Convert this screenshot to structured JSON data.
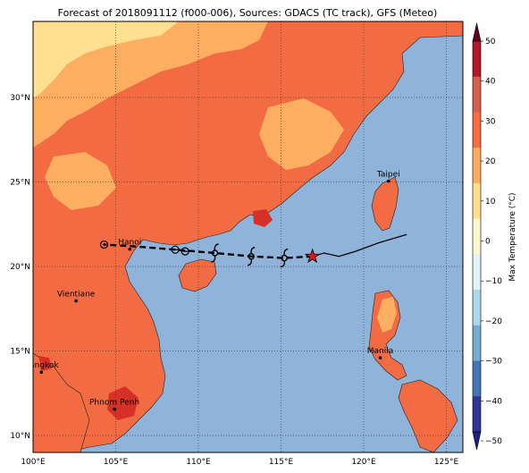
{
  "title": "Forecast of 2018091112 (f000-006), Sources: GDACS (TC track), GFS (Meteo)",
  "map": {
    "lon_range": [
      100,
      126
    ],
    "lat_range": [
      9,
      34.5
    ],
    "x_ticks": [
      {
        "value": 100,
        "label": "100°E"
      },
      {
        "value": 105,
        "label": "105°E"
      },
      {
        "value": 110,
        "label": "110°E"
      },
      {
        "value": 115,
        "label": "115°E"
      },
      {
        "value": 120,
        "label": "120°E"
      },
      {
        "value": 125,
        "label": "125°E"
      }
    ],
    "y_ticks": [
      {
        "value": 10,
        "label": "10°N"
      },
      {
        "value": 15,
        "label": "15°N"
      },
      {
        "value": 20,
        "label": "20°N"
      },
      {
        "value": 25,
        "label": "25°N"
      },
      {
        "value": 30,
        "label": "30°N"
      }
    ],
    "grid": true,
    "colors": {
      "ocean": "#8fb3d9",
      "land_warm": "#f26b43",
      "land_mild": "#fdae61",
      "land_cool": "#fee090",
      "land_hot": "#d73027",
      "track_color": "#000000",
      "star_color": "#d7191c"
    }
  },
  "cities": [
    {
      "name": "Taipei",
      "lon": 121.5,
      "lat": 25.05
    },
    {
      "name": "Hanoi",
      "lon": 105.85,
      "lat": 21.03
    },
    {
      "name": "Vientiane",
      "lon": 102.6,
      "lat": 17.97
    },
    {
      "name": "Manila",
      "lon": 121.0,
      "lat": 14.6
    },
    {
      "name": "Bangkok",
      "lon": 100.5,
      "lat": 13.75
    },
    {
      "name": "Phnom Penh",
      "lon": 104.92,
      "lat": 11.56
    }
  ],
  "track": {
    "observed": [
      [
        122.6,
        21.9
      ],
      [
        120.9,
        21.4
      ],
      [
        119.5,
        20.9
      ],
      [
        118.5,
        20.6
      ],
      [
        117.6,
        20.8
      ],
      [
        116.9,
        20.6
      ]
    ],
    "forecast": [
      [
        116.9,
        20.6
      ],
      [
        115.2,
        20.5
      ],
      [
        113.2,
        20.6
      ],
      [
        111.0,
        20.8
      ],
      [
        108.6,
        21.0
      ],
      [
        106.0,
        21.2
      ],
      [
        104.3,
        21.3
      ]
    ],
    "current": {
      "lon": 116.9,
      "lat": 20.6
    },
    "symbols": [
      {
        "lon": 115.2,
        "lat": 20.5,
        "icon": "typhoon-icon"
      },
      {
        "lon": 113.2,
        "lat": 20.6,
        "icon": "typhoon-icon"
      },
      {
        "lon": 111.0,
        "lat": 20.8,
        "icon": "typhoon-icon"
      },
      {
        "lon": 109.2,
        "lat": 20.9,
        "icon": "tropical-storm-icon"
      },
      {
        "lon": 108.6,
        "lat": 21.0,
        "icon": "tropical-storm-icon"
      },
      {
        "lon": 104.3,
        "lat": 21.3,
        "icon": "depression-icon"
      }
    ]
  },
  "colorbar": {
    "label": "Max Temperature (°C)",
    "ticks": [
      50,
      40,
      30,
      20,
      10,
      0,
      -10,
      -20,
      -30,
      -40,
      -50
    ],
    "tick_labels": [
      "50",
      "40",
      "30",
      "20",
      "10",
      "0",
      "−10",
      "−20",
      "−30",
      "−40",
      "−50"
    ],
    "colors": [
      "#67001f",
      "#b2182b",
      "#d6604d",
      "#f46d43",
      "#fdae61",
      "#fee090",
      "#fff7d0",
      "#e0f3f8",
      "#abd9e9",
      "#74add1",
      "#4575b4",
      "#313695",
      "#1a237e"
    ]
  }
}
